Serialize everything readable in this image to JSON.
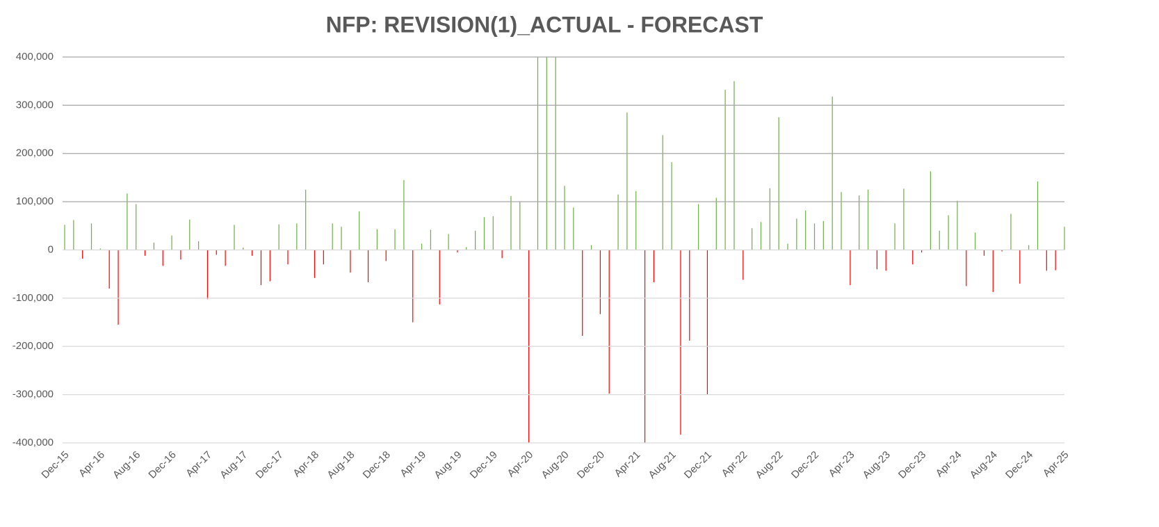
{
  "chart_data": {
    "type": "bar",
    "title": "NFP: REVISION(1)_ACTUAL - FORECAST",
    "categories": [
      "Dec-15",
      null,
      null,
      null,
      "Apr-16",
      null,
      null,
      null,
      "Aug-16",
      null,
      null,
      null,
      "Dec-16",
      null,
      null,
      null,
      "Apr-17",
      null,
      null,
      null,
      "Aug-17",
      null,
      null,
      null,
      "Dec-17",
      null,
      null,
      null,
      "Apr-18",
      null,
      null,
      null,
      "Aug-18",
      null,
      null,
      null,
      "Dec-18",
      null,
      null,
      null,
      "Apr-19",
      null,
      null,
      null,
      "Aug-19",
      null,
      null,
      null,
      "Dec-19",
      null,
      null,
      null,
      "Apr-20",
      null,
      null,
      null,
      "Aug-20",
      null,
      null,
      null,
      "Dec-20",
      null,
      null,
      null,
      "Apr-21",
      null,
      null,
      null,
      "Aug-21",
      null,
      null,
      null,
      "Dec-21",
      null,
      null,
      null,
      "Apr-22",
      null,
      null,
      null,
      "Aug-22",
      null,
      null,
      null,
      "Dec-22",
      null,
      null,
      null,
      "Apr-23",
      null,
      null,
      null,
      "Aug-23",
      null,
      null,
      null,
      "Dec-23",
      null,
      null,
      null,
      "Apr-24",
      null,
      null,
      null,
      "Aug-24",
      null,
      null,
      null,
      "Dec-24",
      null,
      null,
      null,
      "Apr-25"
    ],
    "values": [
      52000,
      62000,
      -18000,
      55000,
      3000,
      -80000,
      -155000,
      117000,
      95000,
      -12000,
      15000,
      -33000,
      30000,
      -20000,
      63000,
      18000,
      -102000,
      -10000,
      -33000,
      52000,
      5000,
      -12000,
      -73000,
      -65000,
      53000,
      -30000,
      55000,
      125000,
      -58000,
      -30000,
      55000,
      48000,
      -47000,
      80000,
      -67000,
      43000,
      -23000,
      43000,
      145000,
      -150000,
      13000,
      42000,
      -113000,
      33000,
      -5000,
      6000,
      40000,
      68000,
      70000,
      -17000,
      112000,
      100000,
      -400000,
      400000,
      400000,
      400000,
      133000,
      88000,
      -178000,
      10000,
      -133000,
      -298000,
      115000,
      285000,
      122000,
      -400000,
      -67000,
      238000,
      182000,
      -383000,
      -188000,
      95000,
      -300000,
      108000,
      332000,
      350000,
      -62000,
      45000,
      58000,
      128000,
      275000,
      13000,
      65000,
      82000,
      55000,
      60000,
      318000,
      120000,
      -73000,
      113000,
      125000,
      -40000,
      -43000,
      55000,
      127000,
      -30000,
      -5000,
      163000,
      40000,
      72000,
      102000,
      -75000,
      36000,
      -12000,
      -87000,
      -3000,
      75000,
      -70000,
      10000,
      142000,
      -43000,
      -42000,
      48000
    ],
    "positive_color": "#70ad47",
    "negative_color": "#ff0000",
    "ylim": [
      -400000,
      400000
    ],
    "yticks": [
      {
        "value": -400000,
        "label": "-400,000"
      },
      {
        "value": -300000,
        "label": "-300,000"
      },
      {
        "value": -200000,
        "label": "-200,000"
      },
      {
        "value": -100000,
        "label": "-100,000"
      },
      0,
      {
        "value": 100000,
        "label": "100,000"
      },
      {
        "value": 200000,
        "label": "200,000"
      },
      {
        "value": 300000,
        "label": "300,000"
      },
      {
        "value": 400000,
        "label": "400,000"
      }
    ],
    "grid": true
  }
}
